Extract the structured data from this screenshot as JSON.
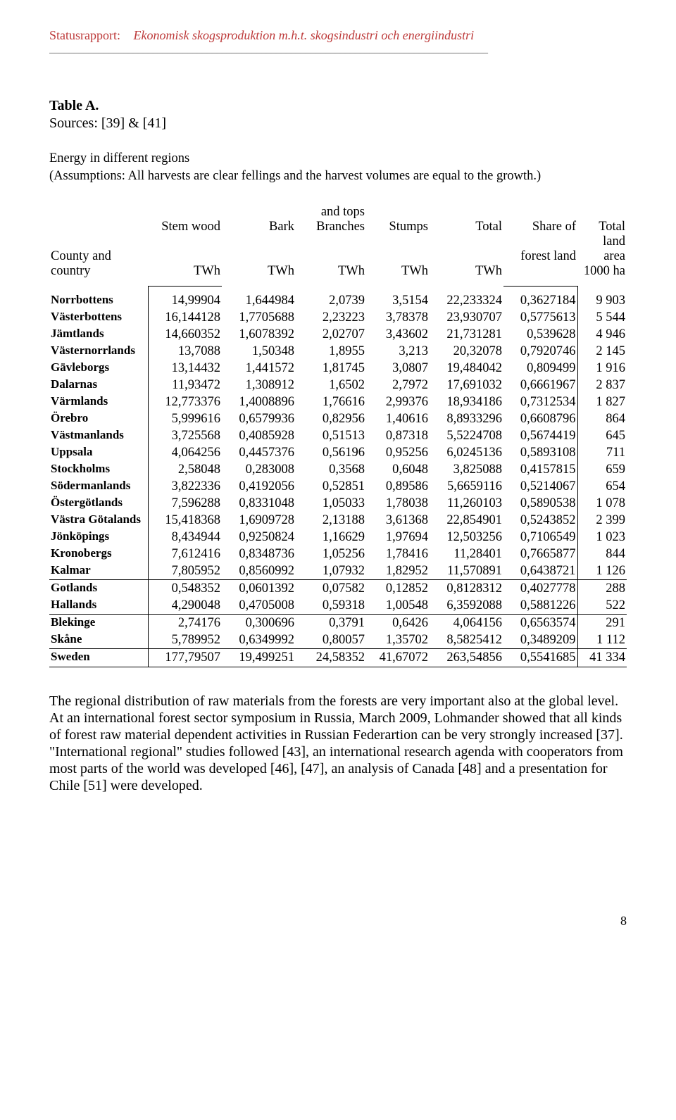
{
  "header": {
    "label": "Statusrapport:",
    "title": "Ekonomisk skogsproduktion m.h.t. skogsindustri och energiindustri"
  },
  "caption": "Table A.",
  "sources": "Sources: [39] & [41]",
  "energy_title": "Energy in different regions",
  "assumptions": "(Assumptions: All harvests are clear fellings and the harvest volumes are equal to the growth.)",
  "columns": {
    "group1_line1": [
      "",
      "Stem wood",
      "Bark",
      "Branches",
      "Stumps",
      "Total",
      "Share of",
      "Total"
    ],
    "group1_line0": [
      "",
      "",
      "",
      "and tops",
      "",
      "",
      "",
      ""
    ],
    "group2_line1": [
      "County and",
      "",
      "",
      "",
      "",
      "",
      "forest land",
      "land area"
    ],
    "group3_line1": [
      "country",
      "TWh",
      "TWh",
      "TWh",
      "TWh",
      "TWh",
      "",
      "1000 ha"
    ]
  },
  "rows": [
    {
      "name": "Norrbottens",
      "v": [
        "14,99904",
        "1,644984",
        "2,0739",
        "3,5154",
        "22,233324",
        "0,3627184",
        "9 903"
      ]
    },
    {
      "name": "Västerbottens",
      "v": [
        "16,144128",
        "1,7705688",
        "2,23223",
        "3,78378",
        "23,930707",
        "0,5775613",
        "5 544"
      ]
    },
    {
      "name": "Jämtlands",
      "v": [
        "14,660352",
        "1,6078392",
        "2,02707",
        "3,43602",
        "21,731281",
        "0,539628",
        "4 946"
      ]
    },
    {
      "name": "Västernorrlands",
      "v": [
        "13,7088",
        "1,50348",
        "1,8955",
        "3,213",
        "20,32078",
        "0,7920746",
        "2 145"
      ]
    },
    {
      "name": "Gävleborgs",
      "v": [
        "13,14432",
        "1,441572",
        "1,81745",
        "3,0807",
        "19,484042",
        "0,809499",
        "1 916"
      ]
    },
    {
      "name": "Dalarnas",
      "v": [
        "11,93472",
        "1,308912",
        "1,6502",
        "2,7972",
        "17,691032",
        "0,6661967",
        "2 837"
      ]
    },
    {
      "name": "Värmlands",
      "v": [
        "12,773376",
        "1,4008896",
        "1,76616",
        "2,99376",
        "18,934186",
        "0,7312534",
        "1 827"
      ]
    },
    {
      "name": "Örebro",
      "v": [
        "5,999616",
        "0,6579936",
        "0,82956",
        "1,40616",
        "8,8933296",
        "0,6608796",
        "864"
      ]
    },
    {
      "name": "Västmanlands",
      "v": [
        "3,725568",
        "0,4085928",
        "0,51513",
        "0,87318",
        "5,5224708",
        "0,5674419",
        "645"
      ]
    },
    {
      "name": "Uppsala",
      "v": [
        "4,064256",
        "0,4457376",
        "0,56196",
        "0,95256",
        "6,0245136",
        "0,5893108",
        "711"
      ]
    },
    {
      "name": "Stockholms",
      "v": [
        "2,58048",
        "0,283008",
        "0,3568",
        "0,6048",
        "3,825088",
        "0,4157815",
        "659"
      ]
    },
    {
      "name": "Södermanlands",
      "v": [
        "3,822336",
        "0,4192056",
        "0,52851",
        "0,89586",
        "5,6659116",
        "0,5214067",
        "654"
      ]
    },
    {
      "name": "Östergötlands",
      "v": [
        "7,596288",
        "0,8331048",
        "1,05033",
        "1,78038",
        "11,260103",
        "0,5890538",
        "1 078"
      ]
    },
    {
      "name": "Västra Götalands",
      "v": [
        "15,418368",
        "1,6909728",
        "2,13188",
        "3,61368",
        "22,854901",
        "0,5243852",
        "2 399"
      ]
    },
    {
      "name": "Jönköpings",
      "v": [
        "8,434944",
        "0,9250824",
        "1,16629",
        "1,97694",
        "12,503256",
        "0,7106549",
        "1 023"
      ]
    },
    {
      "name": "Kronobergs",
      "v": [
        "7,612416",
        "0,8348736",
        "1,05256",
        "1,78416",
        "11,28401",
        "0,7665877",
        "844"
      ]
    },
    {
      "name": "Kalmar",
      "v": [
        "7,805952",
        "0,8560992",
        "1,07932",
        "1,82952",
        "11,570891",
        "0,6438721",
        "1 126"
      ]
    },
    {
      "name": "Gotlands",
      "v": [
        "0,548352",
        "0,0601392",
        "0,07582",
        "0,12852",
        "0,8128312",
        "0,4027778",
        "288"
      ]
    },
    {
      "name": "Hallands",
      "v": [
        "4,290048",
        "0,4705008",
        "0,59318",
        "1,00548",
        "6,3592088",
        "0,5881226",
        "522"
      ]
    },
    {
      "name": "Blekinge",
      "v": [
        "2,74176",
        "0,300696",
        "0,3791",
        "0,6426",
        "4,064156",
        "0,6563574",
        "291"
      ]
    },
    {
      "name": "Skåne",
      "v": [
        "5,789952",
        "0,6349992",
        "0,80057",
        "1,35702",
        "8,5825412",
        "0,3489209",
        "1 112"
      ]
    }
  ],
  "total_row": {
    "name": "Sweden",
    "v": [
      "177,79507",
      "19,499251",
      "24,58352",
      "41,67072",
      "263,54856",
      "0,5541685",
      "41 334"
    ]
  },
  "body_paragraph": "The regional distribution of raw materials from the forests are very important also at the global level. At an international forest sector symposium in Russia, March 2009, Lohmander showed that all kinds of forest raw material dependent activities in Russian Federartion can be very strongly increased [37]. \"International regional\" studies followed [43], an international research agenda with cooperators from most parts of the world was developed [46], [47], an analysis of Canada [48] and a presentation for Chile [51] were developed.",
  "page_number": "8"
}
